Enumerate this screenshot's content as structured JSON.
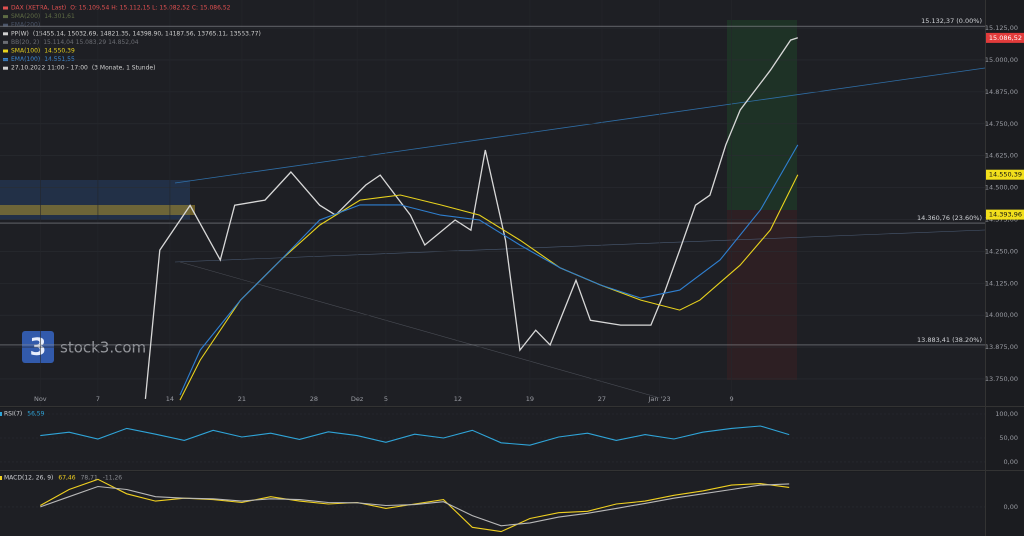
{
  "chart_data": [
    {
      "type": "line",
      "xlim": [
        -2.8,
        65.6
      ],
      "ylim": [
        13644,
        15235
      ],
      "xticks": [
        {
          "value": 0,
          "label": "Nov"
        },
        {
          "value": 4,
          "label": "7"
        },
        {
          "value": 9,
          "label": "14"
        },
        {
          "value": 14,
          "label": "21"
        },
        {
          "value": 19,
          "label": "28"
        },
        {
          "value": 22,
          "label": "Dez"
        },
        {
          "value": 24,
          "label": "5"
        },
        {
          "value": 29,
          "label": "12"
        },
        {
          "value": 34,
          "label": "19"
        },
        {
          "value": 39,
          "label": "27"
        },
        {
          "value": 43,
          "label": "Jan '23"
        },
        {
          "value": 48,
          "label": "9"
        }
      ],
      "yticks": [
        {
          "value": 13750,
          "label": "13.750,00"
        },
        {
          "value": 13875,
          "label": "13.875,00"
        },
        {
          "value": 14000,
          "label": "14.000,00"
        },
        {
          "value": 14125,
          "label": "14.125,00"
        },
        {
          "value": 14250,
          "label": "14.250,00"
        },
        {
          "value": 14375,
          "label": "14.375,00"
        },
        {
          "value": 14500,
          "label": "14.500,00"
        },
        {
          "value": 14625,
          "label": "14.625,00"
        },
        {
          "value": 14750,
          "label": "14.750,00"
        },
        {
          "value": 14875,
          "label": "14.875,00"
        },
        {
          "value": 15000,
          "label": "15.000,00"
        },
        {
          "value": 15125,
          "label": "15.125,00"
        }
      ],
      "grid": true,
      "series": [
        {
          "color": "#d8d8d8",
          "x": [
            7.3,
            8.3,
            10.4,
            12.5,
            13.5,
            15.6,
            17.4,
            19.4,
            20.5,
            22.6,
            23.6,
            25.7,
            26.7,
            28.8,
            29.9,
            30.9,
            32.3,
            33.3,
            34.4,
            35.4,
            37.2,
            38.2,
            40.3,
            42.4,
            43.4,
            44.4,
            45.5,
            46.5,
            47.6,
            48.6,
            50.7,
            52.1,
            52.6
          ],
          "values": [
            13672,
            14255,
            14430,
            14216,
            14431,
            14451,
            14561,
            14431,
            14392,
            14510,
            14549,
            14392,
            14275,
            14373,
            14333,
            14647,
            14294,
            13863,
            13941,
            13883,
            14137,
            13980,
            13961,
            13961,
            14098,
            14255,
            14431,
            14470,
            14667,
            14804,
            14960,
            15078,
            15087
          ]
        },
        {
          "color": "#e8d21d",
          "x": [
            9.7,
            11.1,
            13.9,
            16.7,
            19.4,
            22.2,
            25.0,
            27.8,
            30.5,
            33.3,
            36.1,
            38.9,
            41.7,
            44.4,
            45.8,
            48.6,
            50.7,
            52.6
          ],
          "values": [
            13667,
            13824,
            14059,
            14216,
            14353,
            14451,
            14471,
            14432,
            14392,
            14294,
            14185,
            14118,
            14059,
            14020,
            14059,
            14196,
            14334,
            14550
          ]
        },
        {
          "color": "#2f7fd0",
          "x": [
            9.7,
            11.1,
            13.9,
            16.7,
            19.4,
            22.2,
            25.0,
            27.8,
            30.5,
            33.3,
            36.1,
            38.9,
            41.7,
            44.4,
            47.2,
            50.0,
            52.6
          ],
          "values": [
            13687,
            13863,
            14059,
            14216,
            14373,
            14432,
            14432,
            14392,
            14373,
            14275,
            14185,
            14118,
            14067,
            14098,
            14216,
            14412,
            14667
          ]
        }
      ],
      "hlines": [
        {
          "value": 15132.37,
          "label": "15.132,37 (0.00%)"
        },
        {
          "value": 14360.76,
          "label": "14.360,76 (23.60%)"
        },
        {
          "value": 13883.41,
          "label": "13.883,41 (38.20%)"
        }
      ],
      "price_tags": [
        {
          "value": 15086.52,
          "label": "15.086,52",
          "color": "#e23b3b"
        },
        {
          "value": 14550.39,
          "label": "14.550,39",
          "color": "#f2df1c"
        },
        {
          "value": 14393.96,
          "label": "14.393,96",
          "color": "#f2df1c"
        }
      ],
      "legend_lines": [
        {
          "label": "DAX (XETRA, Last)",
          "value": "O: 15.109,54  H: 15.112,15  L: 15.082,52  C: 15.086,52",
          "color": "#e05050"
        },
        {
          "label": "SMA(200)",
          "value": "14.301,61",
          "color": "#5e6b44"
        },
        {
          "label": "EMA(200)",
          "color": "#4a5468"
        },
        {
          "label": "PP(W)",
          "value": "(15455.14, 15032.69, 14821.35, 14398.90, 14187.56, 13765.11, 13553.77)",
          "color": "#d0d0d0"
        },
        {
          "label": "BB(20, 2)",
          "value": "15.114,04  15.083,29  14.852,04",
          "color": "#6a6c72"
        },
        {
          "label": "SMA(100)",
          "value": "14.550,39",
          "color": "#e8d21d"
        },
        {
          "label": "EMA(100)",
          "value": "14.551,55",
          "color": "#3d8fe0"
        },
        {
          "label": "27.10.2022 11:00 - 17:00",
          "value": "(3 Monate, 1 Stunde)",
          "color": "#d0d0d0"
        }
      ],
      "watermark": {
        "logo": "3",
        "text": "stock3.com"
      }
    },
    {
      "type": "line",
      "title": "RSI(7)",
      "subtitle": "56,59",
      "xlim": [
        -2.8,
        65.6
      ],
      "ylim": [
        -16.7,
        112.5
      ],
      "yticks": [
        {
          "value": 100,
          "label": "100,00"
        },
        {
          "value": 50,
          "label": "50,00"
        },
        {
          "value": 0,
          "label": "0,00"
        }
      ],
      "series": [
        {
          "color": "#2fa4d8",
          "x": [
            0,
            2,
            4,
            6,
            8,
            10,
            12,
            14,
            16,
            18,
            20,
            22,
            24,
            26,
            28,
            30,
            32,
            34,
            36,
            38,
            40,
            42,
            44,
            46,
            48,
            50,
            52
          ],
          "values": [
            55,
            62,
            48,
            70,
            58,
            45,
            66,
            52,
            60,
            47,
            63,
            55,
            41,
            58,
            50,
            66,
            40,
            35,
            52,
            60,
            45,
            57,
            48,
            62,
            70,
            75,
            57
          ]
        }
      ]
    },
    {
      "type": "line",
      "title": "MACD(12, 26, 9)",
      "subtitle": "67,46",
      "note": "78,71",
      "extra": "-11,26",
      "xlim": [
        -2.8,
        65.6
      ],
      "ylim": [
        -100,
        120
      ],
      "yticks": [
        {
          "value": 0,
          "label": "0,00"
        }
      ],
      "series": [
        {
          "color": "#f0d020",
          "x": [
            0,
            2,
            4,
            6,
            8,
            10,
            12,
            14,
            16,
            18,
            20,
            22,
            24,
            26,
            28,
            30,
            32,
            34,
            36,
            38,
            40,
            42,
            44,
            46,
            48,
            50,
            52
          ],
          "values": [
            5,
            60,
            95,
            45,
            20,
            30,
            25,
            15,
            35,
            20,
            10,
            15,
            -5,
            10,
            25,
            -70,
            -85,
            -40,
            -20,
            -15,
            10,
            20,
            40,
            55,
            75,
            80,
            67
          ]
        },
        {
          "color": "#b8b8b8",
          "x": [
            0,
            2,
            4,
            6,
            8,
            10,
            12,
            14,
            16,
            18,
            20,
            22,
            24,
            26,
            28,
            30,
            32,
            34,
            36,
            38,
            40,
            42,
            44,
            46,
            48,
            50,
            52
          ],
          "values": [
            0,
            35,
            70,
            60,
            35,
            30,
            28,
            20,
            28,
            25,
            15,
            14,
            5,
            8,
            18,
            -30,
            -65,
            -55,
            -35,
            -22,
            -5,
            12,
            30,
            45,
            60,
            75,
            79
          ]
        }
      ]
    }
  ]
}
